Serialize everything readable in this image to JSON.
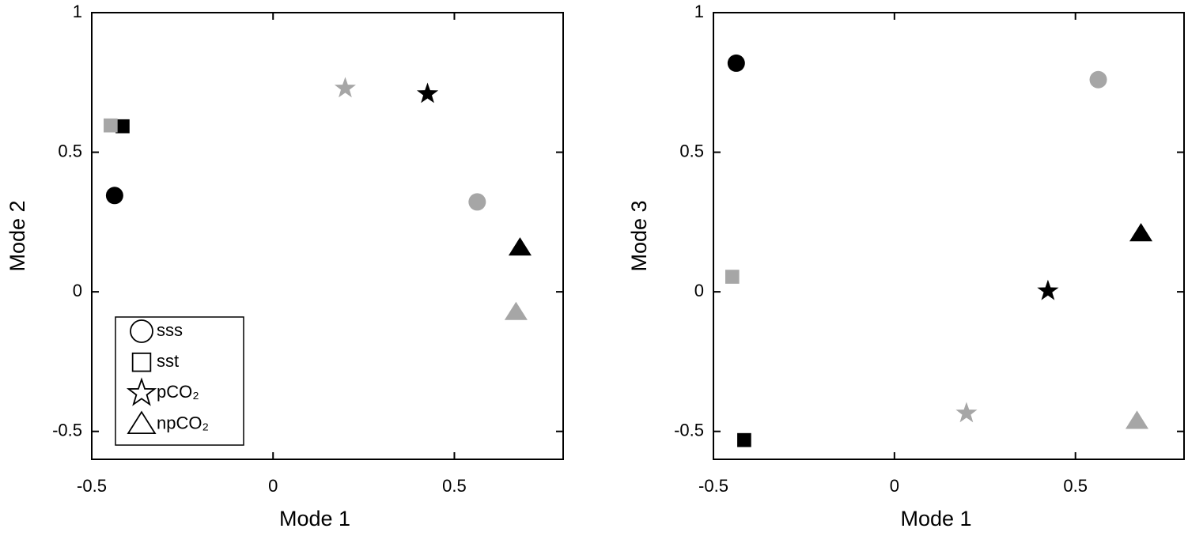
{
  "chart_data": [
    {
      "type": "scatter",
      "xlabel": "Mode 1",
      "ylabel": "Mode 2",
      "xlim": [
        -0.5,
        0.8
      ],
      "ylim": [
        -0.6,
        1
      ],
      "xticks": [
        -0.5,
        0,
        0.5
      ],
      "yticks": [
        -0.5,
        0,
        0.5,
        1
      ],
      "legend": "lower left",
      "series": [
        {
          "name": "sss",
          "marker": "circle",
          "colors": [
            "#000000",
            "#a6a6a6"
          ],
          "x": [
            -0.437,
            0.563
          ],
          "y": [
            0.345,
            0.322
          ]
        },
        {
          "name": "sst",
          "marker": "square",
          "colors": [
            "#000000",
            "#a6a6a6"
          ],
          "x": [
            -0.415,
            -0.448
          ],
          "y": [
            0.593,
            0.596
          ]
        },
        {
          "name": "pCO₂",
          "marker": "star",
          "colors": [
            "#000000",
            "#a6a6a6"
          ],
          "x": [
            0.426,
            0.199
          ],
          "y": [
            0.709,
            0.729
          ]
        },
        {
          "name": "npCO₂",
          "marker": "triangle",
          "colors": [
            "#000000",
            "#a6a6a6"
          ],
          "x": [
            0.681,
            0.67
          ],
          "y": [
            0.158,
            -0.073
          ]
        }
      ]
    },
    {
      "type": "scatter",
      "xlabel": "Mode 1",
      "ylabel": "Mode 3",
      "xlim": [
        -0.5,
        0.8
      ],
      "ylim": [
        -0.6,
        1
      ],
      "xticks": [
        -0.5,
        0,
        0.5
      ],
      "yticks": [
        -0.5,
        0,
        0.5,
        1
      ],
      "series": [
        {
          "marker": "circle",
          "colors": [
            "#000000",
            "#a6a6a6"
          ],
          "x": [
            -0.437,
            0.563
          ],
          "y": [
            0.819,
            0.76
          ]
        },
        {
          "marker": "square",
          "colors": [
            "#000000",
            "#a6a6a6"
          ],
          "x": [
            -0.415,
            -0.448
          ],
          "y": [
            -0.531,
            0.054
          ]
        },
        {
          "marker": "star",
          "colors": [
            "#000000",
            "#a6a6a6"
          ],
          "x": [
            0.424,
            0.199
          ],
          "y": [
            0.003,
            -0.435
          ]
        },
        {
          "marker": "triangle",
          "colors": [
            "#000000",
            "#a6a6a6"
          ],
          "x": [
            0.681,
            0.67
          ],
          "y": [
            0.209,
            -0.463
          ]
        }
      ]
    }
  ]
}
